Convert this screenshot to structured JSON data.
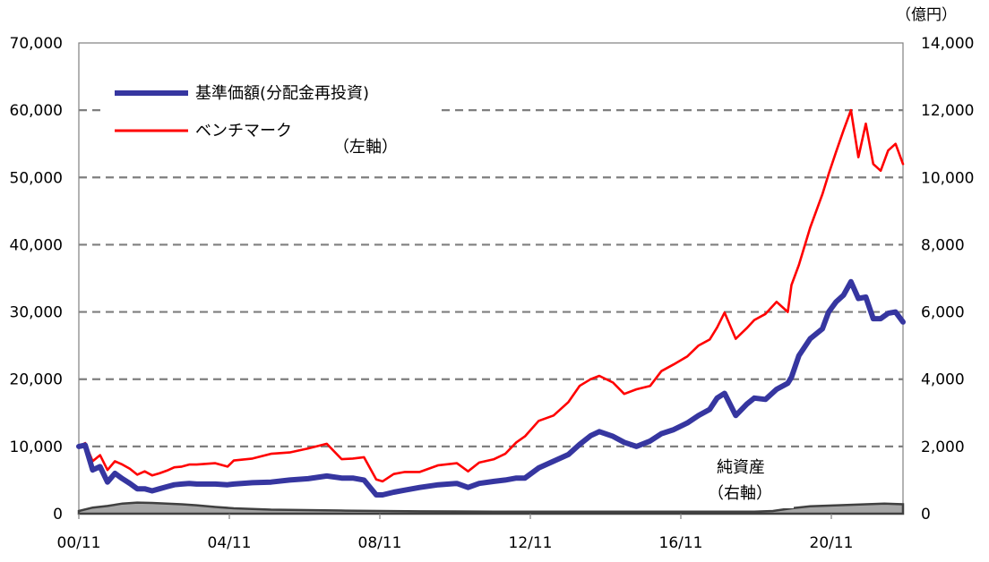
{
  "chart_data": {
    "type": "line",
    "title": "",
    "x_ticks": [
      "00/11",
      "04/11",
      "08/11",
      "12/11",
      "16/11",
      "20/11"
    ],
    "left_axis": {
      "ylim": [
        0,
        70000
      ],
      "ticks": [
        "0",
        "10,000",
        "20,000",
        "30,000",
        "40,000",
        "50,000",
        "60,000",
        "70,000"
      ]
    },
    "right_axis": {
      "unit": "（億円）",
      "ylim": [
        0,
        14000
      ],
      "ticks": [
        "0",
        "2,000",
        "4,000",
        "6,000",
        "8,000",
        "10,000",
        "12,000",
        "14,000"
      ]
    },
    "grid": "dashed horizontal",
    "legend": {
      "placement": "top-left",
      "entries": [
        {
          "label": "基準価額(分配金再投資)",
          "color": "#3636a0"
        },
        {
          "label": "ベンチマーク",
          "color": "#ff0000"
        }
      ],
      "axis_note": "（左軸）"
    },
    "annotations": {
      "net_assets_label": "純資産",
      "net_assets_axis": "（右軸）"
    },
    "series": [
      {
        "name": "ベンチマーク",
        "axis": "left",
        "color": "#ff0000",
        "x": [
          2000.83,
          2001.0,
          2001.2,
          2001.4,
          2001.6,
          2001.8,
          2002.0,
          2002.2,
          2002.4,
          2002.6,
          2002.8,
          2003.0,
          2003.2,
          2003.4,
          2003.6,
          2003.8,
          2004.0,
          2004.5,
          2004.83,
          2005.0,
          2005.5,
          2006.0,
          2006.5,
          2007.0,
          2007.5,
          2007.9,
          2008.2,
          2008.5,
          2008.83,
          2009.0,
          2009.3,
          2009.6,
          2010.0,
          2010.5,
          2011.0,
          2011.3,
          2011.6,
          2012.0,
          2012.3,
          2012.6,
          2012.83,
          2013.2,
          2013.6,
          2014.0,
          2014.3,
          2014.6,
          2014.83,
          2015.2,
          2015.5,
          2015.83,
          2016.2,
          2016.5,
          2016.83,
          2017.2,
          2017.5,
          2017.8,
          2018.0,
          2018.2,
          2018.5,
          2018.8,
          2019.0,
          2019.3,
          2019.6,
          2019.9,
          2020.0,
          2020.2,
          2020.5,
          2020.83,
          2021.0,
          2021.2,
          2021.4,
          2021.6,
          2021.8,
          2022.0,
          2022.2,
          2022.4,
          2022.6,
          2022.8,
          2023.0
        ],
        "values": [
          10000,
          10500,
          7800,
          8700,
          6500,
          7800,
          7300,
          6700,
          5800,
          6300,
          5700,
          6000,
          6400,
          6900,
          7000,
          7300,
          7300,
          7500,
          7000,
          7900,
          8200,
          8900,
          9100,
          9700,
          10400,
          8100,
          8200,
          8400,
          5100,
          4800,
          5900,
          6200,
          6200,
          7200,
          7500,
          6300,
          7600,
          8100,
          8900,
          10600,
          11500,
          13800,
          14600,
          16600,
          19000,
          20000,
          20500,
          19500,
          17800,
          18500,
          19000,
          21200,
          22200,
          23400,
          25000,
          25900,
          27700,
          29900,
          26000,
          27600,
          28800,
          29700,
          31500,
          30000,
          34000,
          37000,
          42500,
          47500,
          50500,
          53800,
          57000,
          60000,
          53000,
          58000,
          52000,
          51000,
          54000,
          55000,
          52000
        ]
      },
      {
        "name": "基準価額(分配金再投資)",
        "axis": "left",
        "color": "#3636a0",
        "x": [
          2000.83,
          2001.0,
          2001.2,
          2001.4,
          2001.6,
          2001.8,
          2002.0,
          2002.2,
          2002.4,
          2002.6,
          2002.8,
          2003.0,
          2003.2,
          2003.4,
          2003.6,
          2003.8,
          2004.0,
          2004.5,
          2004.83,
          2005.0,
          2005.5,
          2006.0,
          2006.5,
          2007.0,
          2007.5,
          2007.9,
          2008.2,
          2008.5,
          2008.83,
          2009.0,
          2009.3,
          2009.6,
          2010.0,
          2010.5,
          2011.0,
          2011.3,
          2011.6,
          2012.0,
          2012.3,
          2012.6,
          2012.83,
          2013.2,
          2013.6,
          2014.0,
          2014.3,
          2014.6,
          2014.83,
          2015.2,
          2015.5,
          2015.83,
          2016.2,
          2016.5,
          2016.83,
          2017.2,
          2017.5,
          2017.8,
          2018.0,
          2018.2,
          2018.5,
          2018.8,
          2019.0,
          2019.3,
          2019.6,
          2019.9,
          2020.0,
          2020.2,
          2020.5,
          2020.83,
          2021.0,
          2021.2,
          2021.4,
          2021.6,
          2021.8,
          2022.0,
          2022.2,
          2022.4,
          2022.6,
          2022.8,
          2023.0
        ],
        "values": [
          10000,
          10200,
          6500,
          7000,
          4700,
          6000,
          5200,
          4500,
          3700,
          3700,
          3400,
          3700,
          4000,
          4300,
          4400,
          4500,
          4400,
          4400,
          4300,
          4400,
          4600,
          4700,
          5000,
          5200,
          5600,
          5300,
          5300,
          5000,
          2800,
          2800,
          3200,
          3500,
          3900,
          4300,
          4500,
          3900,
          4500,
          4800,
          5000,
          5300,
          5300,
          6800,
          7800,
          8800,
          10300,
          11600,
          12200,
          11500,
          10600,
          10000,
          10800,
          11900,
          12500,
          13500,
          14600,
          15500,
          17200,
          17900,
          14600,
          16300,
          17200,
          17000,
          18500,
          19400,
          20300,
          23500,
          26000,
          27500,
          30000,
          31500,
          32500,
          34500,
          32000,
          32200,
          29000,
          29000,
          29800,
          30000,
          28500
        ]
      },
      {
        "name": "純資産",
        "axis": "right",
        "color": "#404040",
        "fill": "#a6a6a6",
        "x": [
          2000.83,
          2001.2,
          2001.6,
          2002.0,
          2002.4,
          2002.8,
          2003.2,
          2003.6,
          2004.0,
          2004.5,
          2005.0,
          2006.0,
          2008.0,
          2010.0,
          2012.0,
          2014.0,
          2016.0,
          2018.0,
          2019.0,
          2019.5,
          2020.0,
          2020.5,
          2021.0,
          2021.5,
          2022.0,
          2022.5,
          2023.0
        ],
        "values": [
          80,
          180,
          230,
          300,
          330,
          320,
          300,
          280,
          250,
          200,
          160,
          120,
          90,
          70,
          60,
          60,
          60,
          60,
          60,
          80,
          160,
          220,
          240,
          260,
          280,
          300,
          280
        ]
      }
    ]
  }
}
